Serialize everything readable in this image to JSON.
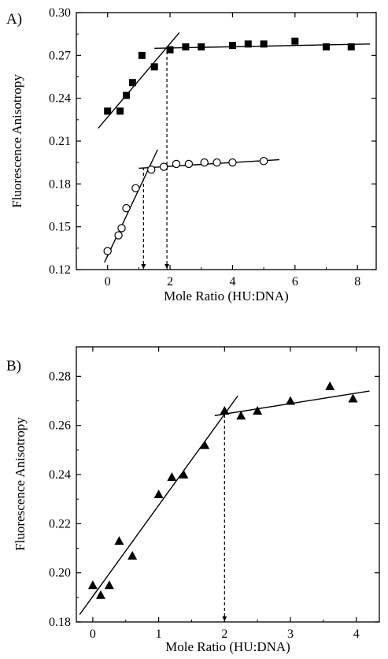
{
  "chart_data": [
    {
      "type": "scatter",
      "panel_label": "A)",
      "xlabel": "Mole Ratio (HU:DNA)",
      "ylabel": "Fluorescence Anisotropy",
      "xlim": [
        -1,
        8.6
      ],
      "ylim": [
        0.12,
        0.3
      ],
      "xticks": [
        0,
        2,
        4,
        6,
        8
      ],
      "yticks": [
        0.12,
        0.15,
        0.18,
        0.21,
        0.24,
        0.27,
        0.3
      ],
      "ytick_labels": [
        "0.12",
        "0.15",
        "0.18",
        "0.21",
        "0.24",
        "0.27",
        "0.30"
      ],
      "grid": false,
      "series": [
        {
          "marker": "filled-square",
          "x": [
            0,
            0.4,
            0.6,
            0.8,
            1.1,
            1.5,
            2.0,
            2.5,
            3.0,
            4.0,
            4.5,
            5.0,
            6.0,
            7.0,
            7.8
          ],
          "y": [
            0.231,
            0.231,
            0.242,
            0.251,
            0.27,
            0.262,
            0.274,
            0.276,
            0.276,
            0.277,
            0.278,
            0.278,
            0.28,
            0.276,
            0.276
          ]
        },
        {
          "marker": "open-circle",
          "x": [
            0,
            0.35,
            0.45,
            0.6,
            0.9,
            1.4,
            1.8,
            2.2,
            2.6,
            3.1,
            3.5,
            4.0,
            5.0
          ],
          "y": [
            0.133,
            0.144,
            0.149,
            0.163,
            0.177,
            0.19,
            0.192,
            0.194,
            0.194,
            0.195,
            0.195,
            0.195,
            0.196
          ]
        }
      ],
      "fit_lines": [
        {
          "x": [
            -0.3,
            2.3
          ],
          "y": [
            0.219,
            0.286
          ]
        },
        {
          "x": [
            1.5,
            8.4
          ],
          "y": [
            0.275,
            0.278
          ]
        },
        {
          "x": [
            -0.1,
            1.6
          ],
          "y": [
            0.125,
            0.204
          ]
        },
        {
          "x": [
            1.0,
            5.5
          ],
          "y": [
            0.191,
            0.197
          ]
        }
      ],
      "dashed_lines": [
        {
          "x": [
            1.15,
            1.15
          ],
          "y": [
            0.12,
            0.191
          ]
        },
        {
          "x": [
            1.9,
            1.9
          ],
          "y": [
            0.12,
            0.275
          ]
        }
      ]
    },
    {
      "type": "scatter",
      "panel_label": "B)",
      "xlabel": "Mole Ratio (HU:DNA)",
      "ylabel": "Fluorescence Anisotropy",
      "xlim": [
        -0.25,
        4.35
      ],
      "ylim": [
        0.18,
        0.292
      ],
      "xticks": [
        0,
        1,
        2,
        3,
        4
      ],
      "yticks": [
        0.18,
        0.2,
        0.22,
        0.24,
        0.26,
        0.28
      ],
      "ytick_labels": [
        "0.18",
        "0.20",
        "0.22",
        "0.24",
        "0.26",
        "0.28"
      ],
      "grid": false,
      "series": [
        {
          "marker": "filled-triangle",
          "x": [
            0,
            0.12,
            0.25,
            0.4,
            0.6,
            1.0,
            1.2,
            1.38,
            1.7,
            2.0,
            2.25,
            2.5,
            3.0,
            3.6,
            3.95
          ],
          "y": [
            0.195,
            0.191,
            0.195,
            0.213,
            0.207,
            0.232,
            0.239,
            0.24,
            0.252,
            0.266,
            0.264,
            0.266,
            0.27,
            0.276,
            0.271
          ]
        }
      ],
      "fit_lines": [
        {
          "x": [
            -0.2,
            2.2
          ],
          "y": [
            0.183,
            0.272
          ]
        },
        {
          "x": [
            1.85,
            4.2
          ],
          "y": [
            0.264,
            0.274
          ]
        }
      ],
      "dashed_lines": [
        {
          "x": [
            2.0,
            2.0
          ],
          "y": [
            0.18,
            0.266
          ]
        }
      ]
    }
  ]
}
